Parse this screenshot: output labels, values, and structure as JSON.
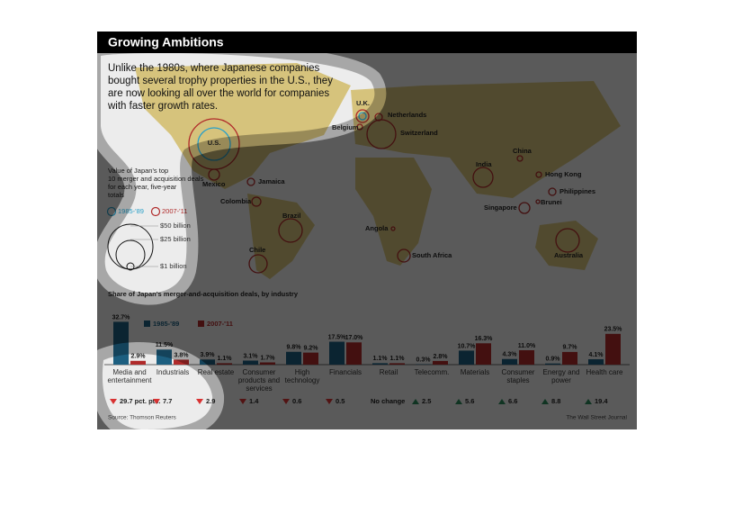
{
  "header": {
    "title": "Growing Ambitions",
    "intro": "Unlike the 1980s, where Japanese companies bought several trophy properties in the U.S., they are now looking all over the world for companies with faster growth rates."
  },
  "map": {
    "legend_title": "Value of Japan's top 10 merger and acquisition deals for each year, five-year totals",
    "size_legend": [
      "$50 billion",
      "$25 billion",
      "$1 billion"
    ],
    "places": [
      "U.K.",
      "Netherlands",
      "Belgium",
      "Switzerland",
      "U.S.",
      "Mexico",
      "Jamaica",
      "Colombia",
      "Brazil",
      "Chile",
      "Angola",
      "South Africa",
      "India",
      "China",
      "Hong Kong",
      "Philippines",
      "Singapore",
      "Brunei",
      "Australia"
    ]
  },
  "chart_data": {
    "type": "bar",
    "title": "Share of Japan's merger-and-acquisition deals, by industry",
    "categories": [
      "Media and entertainment",
      "Industrials",
      "Real estate",
      "Consumer products and services",
      "High technology",
      "Financials",
      "Retail",
      "Telecomm.",
      "Materials",
      "Consumer staples",
      "Energy and power",
      "Health care"
    ],
    "series": [
      {
        "name": "1985-'89",
        "color": "#1d5f80",
        "values": [
          32.7,
          11.5,
          3.9,
          3.1,
          9.8,
          17.5,
          1.1,
          0.3,
          10.7,
          4.3,
          0.9,
          4.1
        ],
        "value_labels": [
          "32.7%",
          "11.5%",
          "3.9%",
          "3.1%",
          "9.8%",
          "17.5%",
          "1.1%",
          "0.3%",
          "10.7%",
          "4.3%",
          "0.9%",
          "4.1%"
        ]
      },
      {
        "name": "2007-'11",
        "color": "#b02a2a",
        "values": [
          2.9,
          3.8,
          1.1,
          1.7,
          9.2,
          17.0,
          1.1,
          2.8,
          16.3,
          11.0,
          9.7,
          23.5
        ],
        "value_labels": [
          "2.9%",
          "3.8%",
          "1.1%",
          "1.7%",
          "9.2%",
          "17.0%",
          "1.1%",
          "2.8%",
          "16.3%",
          "11.0%",
          "9.7%",
          "23.5%"
        ]
      }
    ],
    "changes": [
      -29.7,
      -7.7,
      -2.9,
      -1.4,
      -0.6,
      -0.5,
      0,
      2.5,
      5.6,
      6.6,
      8.8,
      19.4
    ],
    "change_labels": [
      "29.7 pct. pts.",
      "7.7",
      "2.9",
      "1.4",
      "0.6",
      "0.5",
      "No change",
      "2.5",
      "5.6",
      "6.6",
      "8.8",
      "19.4"
    ],
    "ylim": [
      0,
      33
    ],
    "source": "Source: Thomson Reuters",
    "credit": "The Wall Street Journal"
  }
}
